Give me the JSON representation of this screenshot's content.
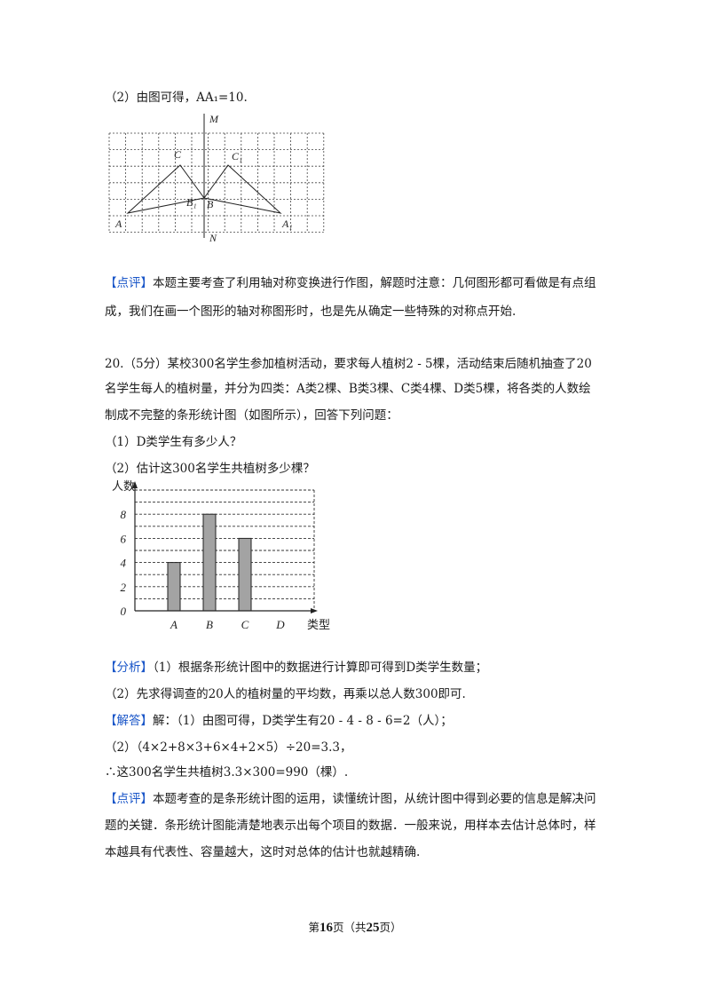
{
  "part2_header": "（2）由图可得，AA₁=10.",
  "grid_figure": {
    "labels": {
      "M": "M",
      "N": "N",
      "A": "A",
      "A1": "A₁",
      "B": "B",
      "B1": "B₁",
      "C": "C",
      "C1": "C₁"
    }
  },
  "comment1": {
    "tag": "【点评】",
    "line1": "本题主要考查了利用轴对称变换进行作图，解题时注意：几何图形都可看做是有点组",
    "line2": "成，我们在画一个图形的轴对称图形时，也是先从确定一些特殊的对称点开始."
  },
  "question20": {
    "line1": "20.（5分）某校300名学生参加植树活动，要求每人植树2 - 5棵，活动结束后随机抽查了20",
    "line2": "名学生每人的植树量，并分为四类：A类2棵、B类3棵、C类4棵、D类5棵，将各类的人数绘",
    "line3": "制成不完整的条形统计图（如图所示），回答下列问题：",
    "q1": "（1）D类学生有多少人？",
    "q2": "（2）估计这300名学生共植树多少棵？"
  },
  "chart_data": {
    "type": "bar",
    "ylabel": "人数",
    "xlabel": "类型",
    "categories": [
      "A",
      "B",
      "C",
      "D"
    ],
    "values": [
      4,
      8,
      6,
      null
    ],
    "yticks": [
      "0",
      "2",
      "4",
      "6",
      "8"
    ],
    "ylim": [
      0,
      10
    ],
    "grid": "dashed-horizontal",
    "bar_color": "#a3a3a3"
  },
  "analysis": {
    "tag": "【分析】",
    "line1": "（1）根据条形统计图中的数据进行计算即可得到D类学生数量；",
    "line2": "（2）先求得调查的20人的植树量的平均数，再乘以总人数300即可."
  },
  "answer": {
    "tag": "【解答】",
    "line1": "解：（1）由图可得，D类学生有20 - 4 - 8 - 6=2（人）；",
    "line2": "（2）（4×2+8×3+6×4+2×5）÷20=3.3，",
    "line3": "∴这300名学生共植树3.3×300=990（棵）."
  },
  "comment2": {
    "tag": "【点评】",
    "line1": "本题考查的是条形统计图的运用，读懂统计图，从统计图中得到必要的信息是解决问",
    "line2": "题的关键．条形统计图能清楚地表示出每个项目的数据．一般来说，用样本去估计总体时，样",
    "line3": "本越具有代表性、容量越大，这时对总体的估计也就越精确."
  },
  "footer": {
    "pre": "第",
    "page": "16",
    "mid": "页（共",
    "total": "25",
    "post": "页）"
  }
}
